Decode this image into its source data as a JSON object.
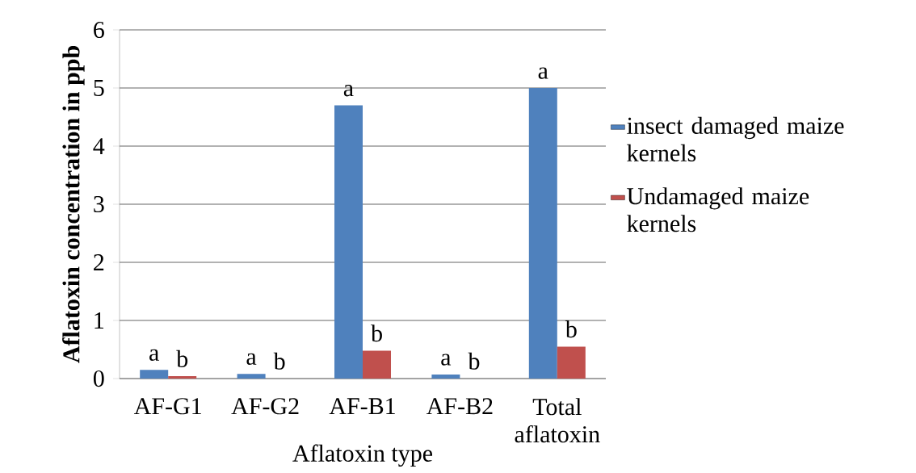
{
  "chart_data": {
    "type": "bar",
    "xlabel": "Aflatoxin type",
    "ylabel": "Aflatoxin concentration in ppb",
    "categories": [
      "AF-G1",
      "AF-G2",
      "AF-B1",
      "AF-B2",
      "Total aflatoxin"
    ],
    "series": [
      {
        "name": "insect damaged maize kernels",
        "color": "#4f81bd",
        "values": [
          0.15,
          0.08,
          4.7,
          0.07,
          5.0
        ]
      },
      {
        "name": "Undamaged maize kernels",
        "color": "#c0504d",
        "values": [
          0.04,
          0,
          0.48,
          0,
          0.55
        ]
      }
    ],
    "ylim": [
      0,
      6
    ],
    "yticks": [
      0,
      1,
      2,
      3,
      4,
      5,
      6
    ],
    "grid": "y",
    "legend": "right",
    "annotations": [
      "a",
      "b",
      "a",
      "b",
      "a",
      "b",
      "a",
      "b",
      "a",
      "b"
    ]
  }
}
